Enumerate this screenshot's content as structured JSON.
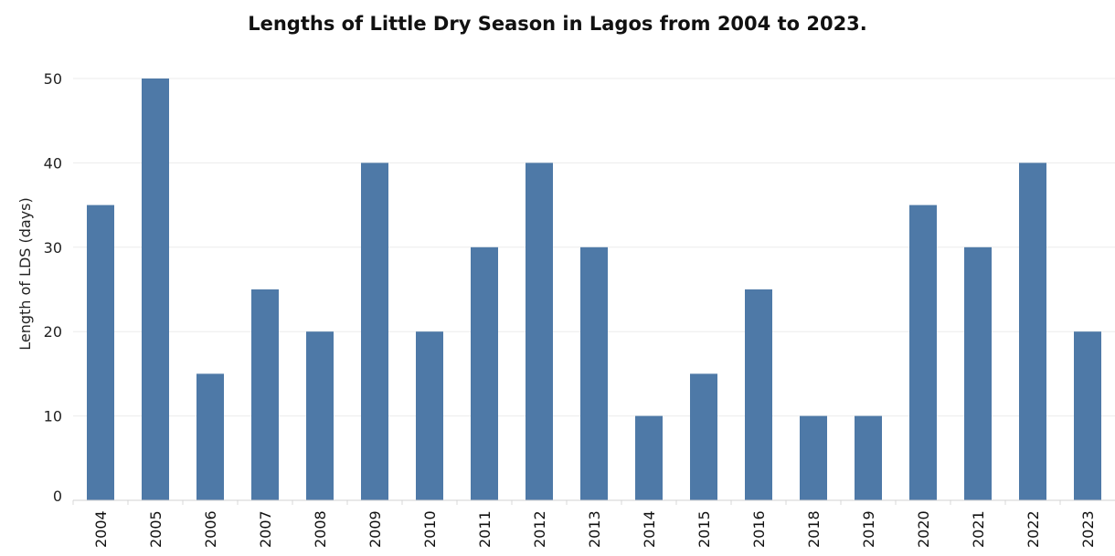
{
  "chart_data": {
    "type": "bar",
    "title": "Lengths of Little Dry Season in Lagos from 2004 to 2023.",
    "xlabel": "",
    "ylabel": "Length of LDS (days)",
    "categories": [
      "2004",
      "2005",
      "2006",
      "2007",
      "2008",
      "2009",
      "2010",
      "2011",
      "2012",
      "2013",
      "2014",
      "2015",
      "2016",
      "2018",
      "2019",
      "2020",
      "2021",
      "2022",
      "2023"
    ],
    "values": [
      35,
      50,
      15,
      25,
      20,
      40,
      20,
      30,
      40,
      30,
      10,
      15,
      25,
      10,
      10,
      35,
      30,
      40,
      20
    ],
    "ylim": [
      0,
      50
    ],
    "yticks": [
      0,
      10,
      20,
      30,
      40,
      50
    ],
    "grid": true,
    "bar_color": "#4e79a7",
    "grid_color": "#ebebeb"
  }
}
